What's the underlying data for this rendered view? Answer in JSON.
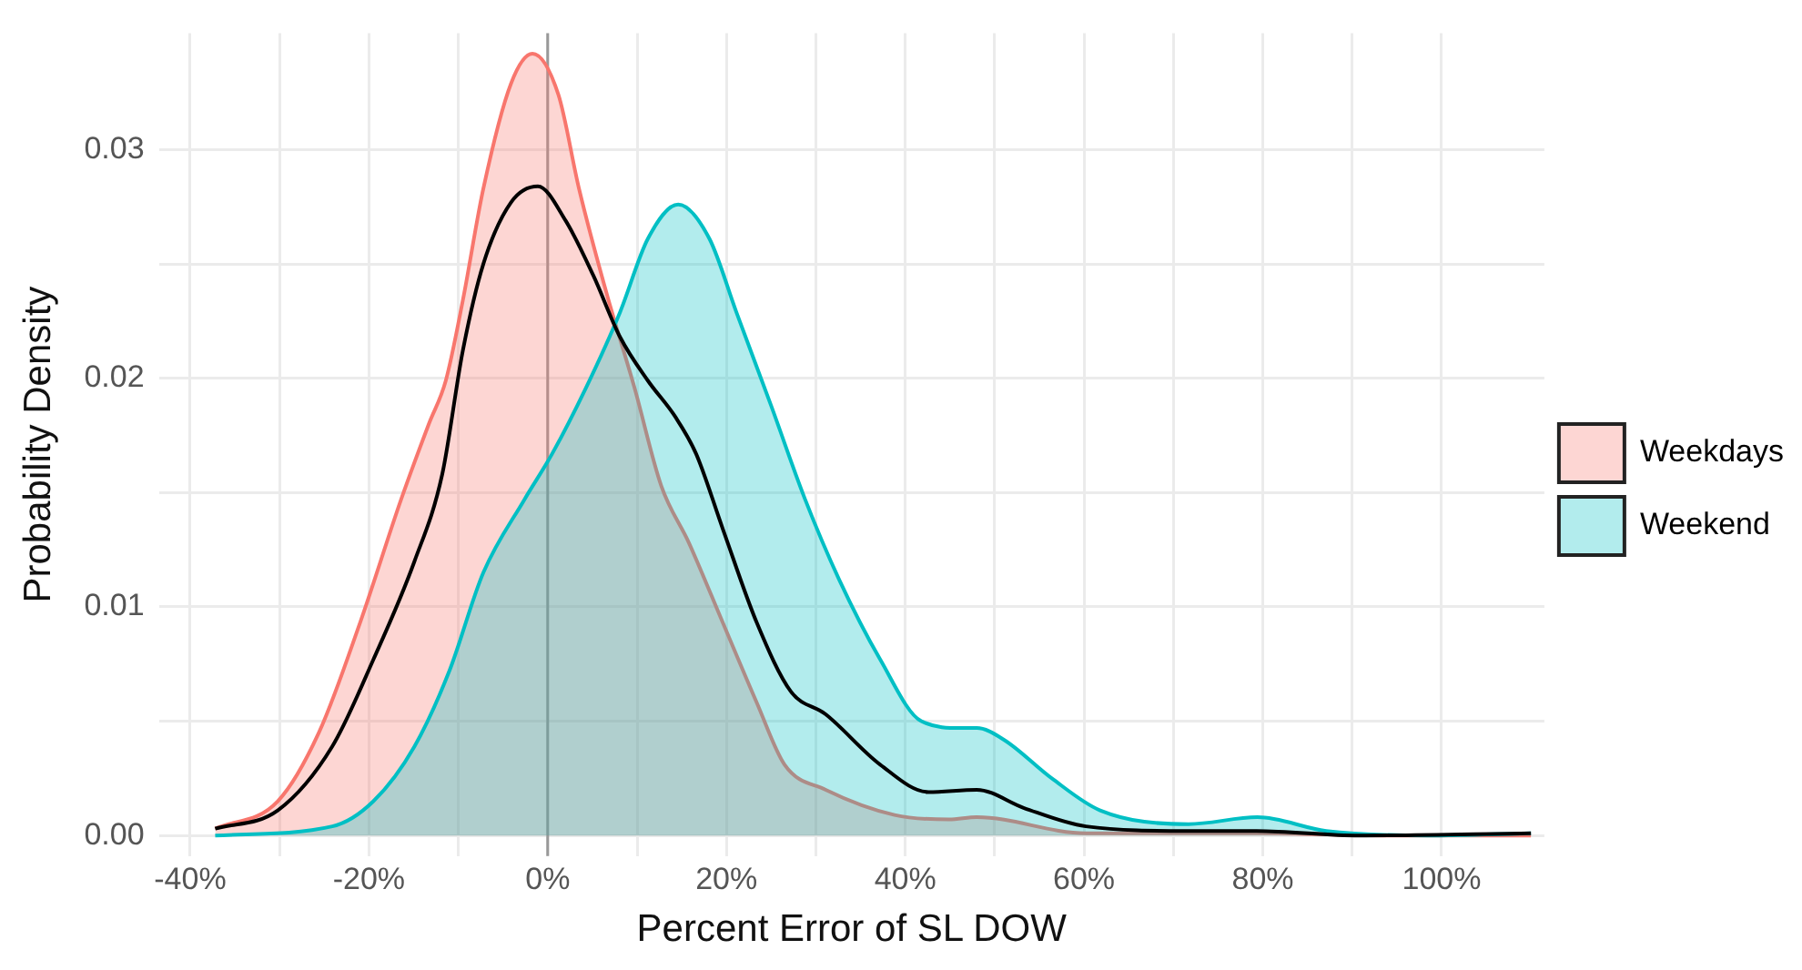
{
  "chart_data": {
    "type": "area",
    "xlabel": "Percent Error of SL DOW",
    "ylabel": "Probability Density",
    "legend": "right",
    "grid": true,
    "xlim": [
      -43.5,
      111.5
    ],
    "xticks": [
      {
        "value": -40,
        "label": "-40%"
      },
      {
        "value": -30,
        "label": null
      },
      {
        "value": -20,
        "label": "-20%"
      },
      {
        "value": -10,
        "label": null
      },
      {
        "value": 0,
        "label": "0%"
      },
      {
        "value": 10,
        "label": null
      },
      {
        "value": 20,
        "label": "20%"
      },
      {
        "value": 30,
        "label": null
      },
      {
        "value": 40,
        "label": "40%"
      },
      {
        "value": 50,
        "label": null
      },
      {
        "value": 60,
        "label": "60%"
      },
      {
        "value": 70,
        "label": null
      },
      {
        "value": 80,
        "label": "80%"
      },
      {
        "value": 90,
        "label": null
      },
      {
        "value": 100,
        "label": "100%"
      }
    ],
    "ylim": [
      -0.0009,
      0.0351
    ],
    "yticks": [
      {
        "value": 0,
        "label": "0.00"
      },
      {
        "value": 0.005,
        "label": null
      },
      {
        "value": 0.01,
        "label": "0.01"
      },
      {
        "value": 0.015,
        "label": null
      },
      {
        "value": 0.02,
        "label": "0.02"
      },
      {
        "value": 0.025,
        "label": null
      },
      {
        "value": 0.03,
        "label": "0.03"
      }
    ],
    "ref_lines": [
      {
        "axis": "x",
        "value": 0,
        "color": "#999999"
      }
    ],
    "series": [
      {
        "name": "Weekdays",
        "color": "#f8766d",
        "x": [
          -37.2,
          -30.2,
          -25.6,
          -21.0,
          -16.4,
          -13.3,
          -11.4,
          -9.5,
          -7.2,
          -4.1,
          -1.7,
          1.2,
          3.5,
          6.6,
          9.7,
          12.7,
          15.8,
          19.6,
          23.4,
          26.5,
          31.1,
          38.8,
          44.9,
          48,
          60.2,
          79.3,
          95,
          110
        ],
        "values": [
          0.0003,
          0.0015,
          0.0045,
          0.0093,
          0.0147,
          0.018,
          0.0199,
          0.0234,
          0.0283,
          0.0329,
          0.0342,
          0.0324,
          0.0283,
          0.0237,
          0.0196,
          0.0153,
          0.0128,
          0.0093,
          0.0058,
          0.0031,
          0.002,
          0.0009,
          0.0007,
          0.0008,
          0.0001,
          0.0001,
          0.0,
          0.0
        ]
      },
      {
        "name": "Weekend",
        "color": "#00bfc4",
        "x": [
          -37.2,
          -24.1,
          -19.5,
          -14.9,
          -11,
          -7.2,
          -2.6,
          0.5,
          4.3,
          8.1,
          11.2,
          14.6,
          18.1,
          21.1,
          25,
          28.8,
          32.6,
          37.2,
          41.8,
          46.4,
          48,
          51.0,
          56.4,
          61.8,
          71.7,
          79.4,
          87.1,
          98.5,
          110
        ],
        "values": [
          0.0,
          0.0004,
          0.0015,
          0.0039,
          0.0072,
          0.0115,
          0.0147,
          0.0167,
          0.0196,
          0.0229,
          0.0261,
          0.0276,
          0.0261,
          0.0229,
          0.0188,
          0.0147,
          0.0112,
          0.0077,
          0.005,
          0.0047,
          0.0047,
          0.0042,
          0.0025,
          0.0011,
          0.0005,
          0.0008,
          0.0002,
          0.0,
          0.0001
        ]
      },
      {
        "type": "line",
        "color": "#000000",
        "x": [
          -37.2,
          -30.2,
          -24.1,
          -19.5,
          -14.9,
          -11.8,
          -9.5,
          -7.2,
          -4.1,
          -1.1,
          2.0,
          5.1,
          8.1,
          11.2,
          14.3,
          16.6,
          19.6,
          23.4,
          27.2,
          31.1,
          37.2,
          42.6,
          48,
          53.3,
          60.2,
          71.7,
          79.3,
          90.8,
          110
        ],
        "values": [
          0.0003,
          0.0011,
          0.0039,
          0.0077,
          0.012,
          0.0158,
          0.0212,
          0.025,
          0.0277,
          0.0284,
          0.0269,
          0.0245,
          0.0218,
          0.0199,
          0.0183,
          0.0167,
          0.0134,
          0.0093,
          0.0063,
          0.0053,
          0.0031,
          0.0019,
          0.002,
          0.0012,
          0.0004,
          0.0002,
          0.0002,
          0.0,
          0.0001
        ]
      }
    ]
  }
}
